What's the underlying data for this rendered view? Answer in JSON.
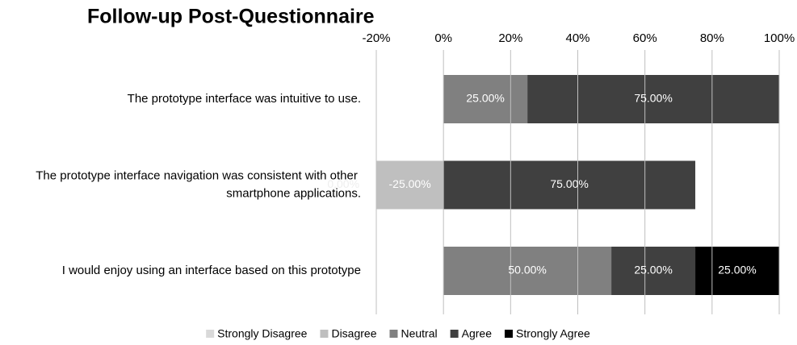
{
  "chart_data": {
    "type": "stacked_barh",
    "title": "Follow-up Post-Questionnaire",
    "categories": [
      "The prototype interface was intuitive to use.",
      "The prototype interface navigation was consistent with other smartphone applications.",
      "I would enjoy using an interface based on this prototype"
    ],
    "series": [
      {
        "name": "Strongly Disagree",
        "color": "#d9d9d9",
        "values": [
          null,
          0,
          null
        ],
        "value_labels": [
          null,
          "0.00%",
          null
        ]
      },
      {
        "name": "Disagree",
        "color": "#bfbfbf",
        "values": [
          null,
          -25,
          null
        ],
        "value_labels": [
          null,
          "-25.00%",
          null
        ]
      },
      {
        "name": "Neutral",
        "color": "#808080",
        "values": [
          25,
          null,
          50
        ],
        "value_labels": [
          "25.00%",
          null,
          "50.00%"
        ]
      },
      {
        "name": "Agree",
        "color": "#404040",
        "values": [
          75,
          75,
          25
        ],
        "value_labels": [
          "75.00%",
          "75.00%",
          "25.00%"
        ]
      },
      {
        "name": "Strongly Agree",
        "color": "#000000",
        "values": [
          null,
          null,
          25
        ],
        "value_labels": [
          null,
          null,
          "25.00%"
        ]
      }
    ],
    "xlim": [
      -20,
      100
    ],
    "xticks": [
      {
        "value": -20,
        "label": "-20%"
      },
      {
        "value": 0,
        "label": "0%"
      },
      {
        "value": 20,
        "label": "20%"
      },
      {
        "value": 40,
        "label": "40%"
      },
      {
        "value": 60,
        "label": "60%"
      },
      {
        "value": 80,
        "label": "80%"
      },
      {
        "value": 100,
        "label": "100%"
      }
    ],
    "grid": true,
    "legend": "bottom"
  }
}
